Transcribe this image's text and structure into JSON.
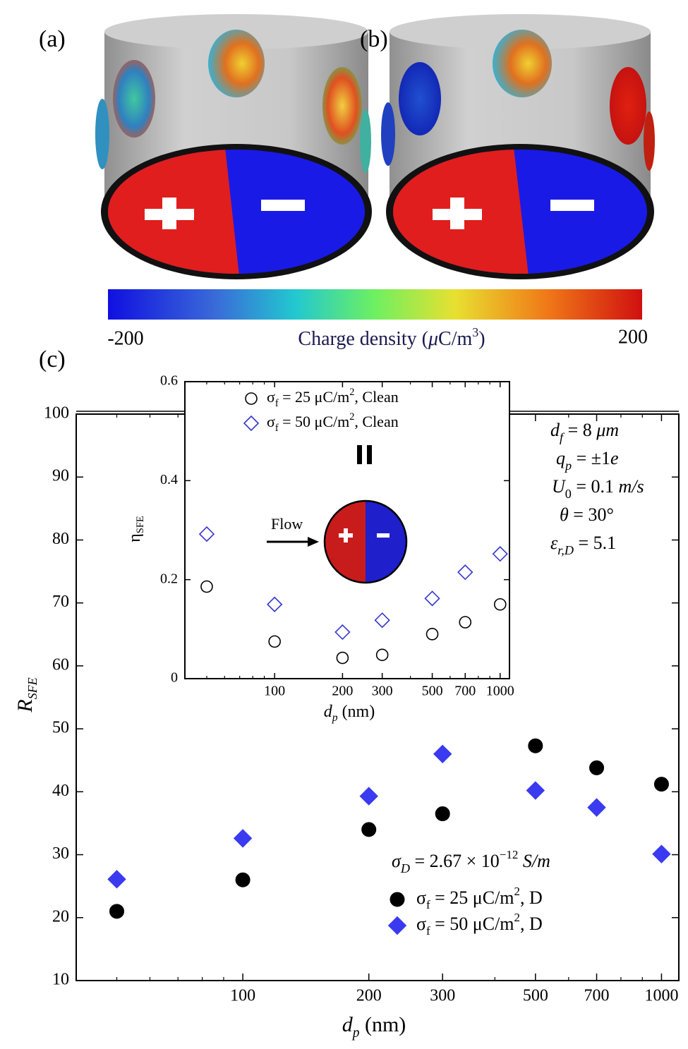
{
  "panels": [
    "(a)",
    "(b)",
    "(c)"
  ],
  "colorbar": {
    "lim": [
      -200,
      200
    ],
    "label": [
      "Charge density (",
      "μ",
      "C/m",
      "3",
      ")"
    ]
  },
  "inset_flow_label": "Flow",
  "annotations": [
    [
      "d",
      "f",
      " = 8 ",
      "μm"
    ],
    [
      "q",
      "p",
      " = ±1",
      "e"
    ],
    [
      "U",
      "0",
      " = 0.1 ",
      "m/s"
    ],
    [
      "θ",
      " = 30°"
    ],
    [
      "ε",
      "r,D",
      " = 5.1"
    ],
    [
      "σ",
      "D",
      " = 2.67 × 10",
      "−12",
      " S/m"
    ]
  ],
  "chart_data": [
    {
      "type": "scatter",
      "xlabel": [
        "d",
        "p",
        " (nm)"
      ],
      "ylabel": [
        "R",
        "SFE"
      ],
      "xscale": "log",
      "xlim": [
        40,
        1100
      ],
      "ylim": [
        10,
        100
      ],
      "xticks": [
        100,
        200,
        300,
        500,
        700,
        1000
      ],
      "xminorticks": [
        50,
        60,
        70,
        80,
        90,
        400,
        600,
        800,
        900
      ],
      "yticks": [
        10,
        20,
        30,
        40,
        50,
        60,
        70,
        80,
        90,
        100
      ],
      "x": [
        50,
        100,
        200,
        300,
        500,
        700,
        1000
      ],
      "series": [
        {
          "name": [
            "σ",
            "f",
            " = 25 μC/m",
            "2",
            ", D"
          ],
          "color": "#000000",
          "marker": "circle",
          "filled": true,
          "values": [
            21,
            26,
            34,
            36.5,
            47.3,
            43.8,
            41.2
          ]
        },
        {
          "name": [
            "σ",
            "f",
            " = 50 μC/m",
            "2",
            ", D"
          ],
          "color": "#3a3af0",
          "marker": "diamond",
          "filled": true,
          "values": [
            26.1,
            32.6,
            39.3,
            46,
            40.2,
            37.5,
            30.1
          ]
        }
      ]
    },
    {
      "type": "scatter",
      "xlabel": [
        "d",
        "p",
        " (nm)"
      ],
      "ylabel": [
        "η",
        "SFE"
      ],
      "xscale": "log",
      "xlim": [
        40,
        1100
      ],
      "ylim": [
        0,
        0.6
      ],
      "xticks": [
        100,
        200,
        300,
        500,
        700,
        1000
      ],
      "xminorticks": [
        50,
        60,
        70,
        80,
        90,
        400,
        600,
        800,
        900
      ],
      "yticks": [
        0,
        0.2,
        0.4,
        0.6
      ],
      "x": [
        50,
        100,
        200,
        300,
        500,
        700,
        1000
      ],
      "series": [
        {
          "name": [
            "σ",
            "f",
            " = 25 μC/m",
            "2",
            ", Clean"
          ],
          "color": "#000000",
          "marker": "circle",
          "filled": false,
          "values": [
            0.186,
            0.075,
            0.042,
            0.048,
            0.09,
            0.114,
            0.15
          ]
        },
        {
          "name": [
            "σ",
            "f",
            " = 50 μC/m",
            "2",
            ", Clean"
          ],
          "color": "#3535d0",
          "marker": "diamond",
          "filled": false,
          "values": [
            0.292,
            0.15,
            0.094,
            0.118,
            0.162,
            0.215,
            0.252
          ]
        }
      ]
    }
  ]
}
